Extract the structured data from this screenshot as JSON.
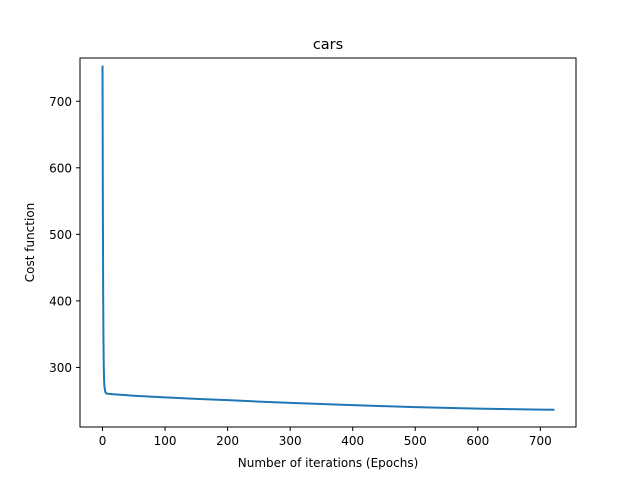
{
  "chart_data": {
    "type": "line",
    "title": "cars",
    "xlabel": "Number of iterations (Epochs)",
    "ylabel": "Cost function",
    "xlim": [
      -36,
      757
    ],
    "ylim": [
      210.5,
      765
    ],
    "xticks": [
      0,
      100,
      200,
      300,
      400,
      500,
      600,
      700
    ],
    "yticks": [
      300,
      400,
      500,
      600,
      700
    ],
    "grid": false,
    "legend": "none",
    "series": [
      {
        "color": "#1f77b4",
        "x": [
          0,
          0.5,
          1,
          1.5,
          2,
          2.5,
          3,
          4,
          5,
          6,
          8,
          10,
          20,
          50,
          100,
          150,
          200,
          250,
          300,
          350,
          400,
          450,
          500,
          550,
          600,
          650,
          700,
          721
        ],
        "y": [
          752,
          560,
          420,
          340,
          300,
          282,
          272,
          265,
          262,
          261,
          260.6,
          260.3,
          259.5,
          257.5,
          255,
          252.8,
          250.8,
          248.7,
          246.8,
          245,
          243.3,
          241.8,
          240.4,
          239.2,
          238.2,
          237.3,
          236.6,
          236.4
        ]
      }
    ]
  }
}
